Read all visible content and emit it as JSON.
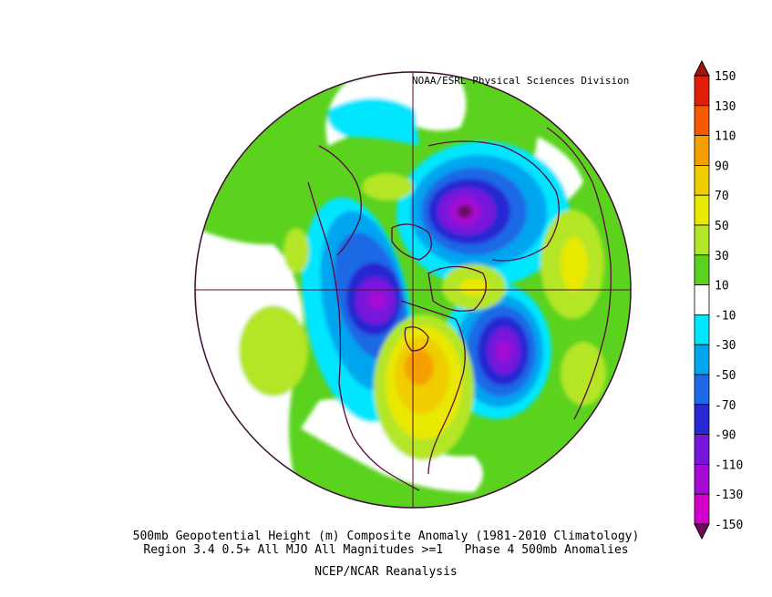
{
  "credit": "NOAA/ESRL Physical Sciences Division",
  "caption": {
    "line1": "500mb Geopotential Height (m) Composite Anomaly (1981-2010 Climatology)",
    "line2": "Region 3.4 0.5+ All MJO All Magnitudes >=1   Phase 4 500mb Anomalies",
    "line3": "NCEP/NCAR Reanalysis"
  },
  "colorbar": {
    "levels": [
      {
        "label": "150",
        "color": "#c8000a"
      },
      {
        "label": "130",
        "color": "#e11e0a"
      },
      {
        "label": "110",
        "color": "#f55a00"
      },
      {
        "label": "90",
        "color": "#f5a000"
      },
      {
        "label": "70",
        "color": "#f0cd00"
      },
      {
        "label": "50",
        "color": "#e8e800"
      },
      {
        "label": "30",
        "color": "#b4e628"
      },
      {
        "label": "10",
        "color": "#5ad21e"
      },
      {
        "label": "-10",
        "color": "#ffffff"
      },
      {
        "label": "-30",
        "color": "#00e6ff"
      },
      {
        "label": "-50",
        "color": "#00a5f0"
      },
      {
        "label": "-70",
        "color": "#1e69e6"
      },
      {
        "label": "-90",
        "color": "#2828d2"
      },
      {
        "label": "-110",
        "color": "#7814dc"
      },
      {
        "label": "-130",
        "color": "#a50ad2"
      },
      {
        "label": "-150",
        "color": "#d200c8"
      }
    ],
    "below_color": "#6e0a5a",
    "above_color": "#a0140a"
  },
  "map": {
    "projection": "polar-stereographic-north",
    "variable": "500mb geopotential height anomaly (m)",
    "anomaly_centers": [
      {
        "region": "Eurasian Arctic / Barents-Kara",
        "sign": "negative",
        "peak_band": "-130"
      },
      {
        "region": "Gulf of Alaska / NE Pacific",
        "sign": "negative",
        "peak_band": "-130"
      },
      {
        "region": "North Atlantic",
        "sign": "negative",
        "peak_band": "-110"
      },
      {
        "region": "Central Canada / Great Lakes",
        "sign": "positive",
        "peak_band": "90"
      },
      {
        "region": "Western Russia / Europe",
        "sign": "positive",
        "peak_band": "50"
      },
      {
        "region": "Central Pacific",
        "sign": "positive",
        "peak_band": "30"
      }
    ]
  }
}
